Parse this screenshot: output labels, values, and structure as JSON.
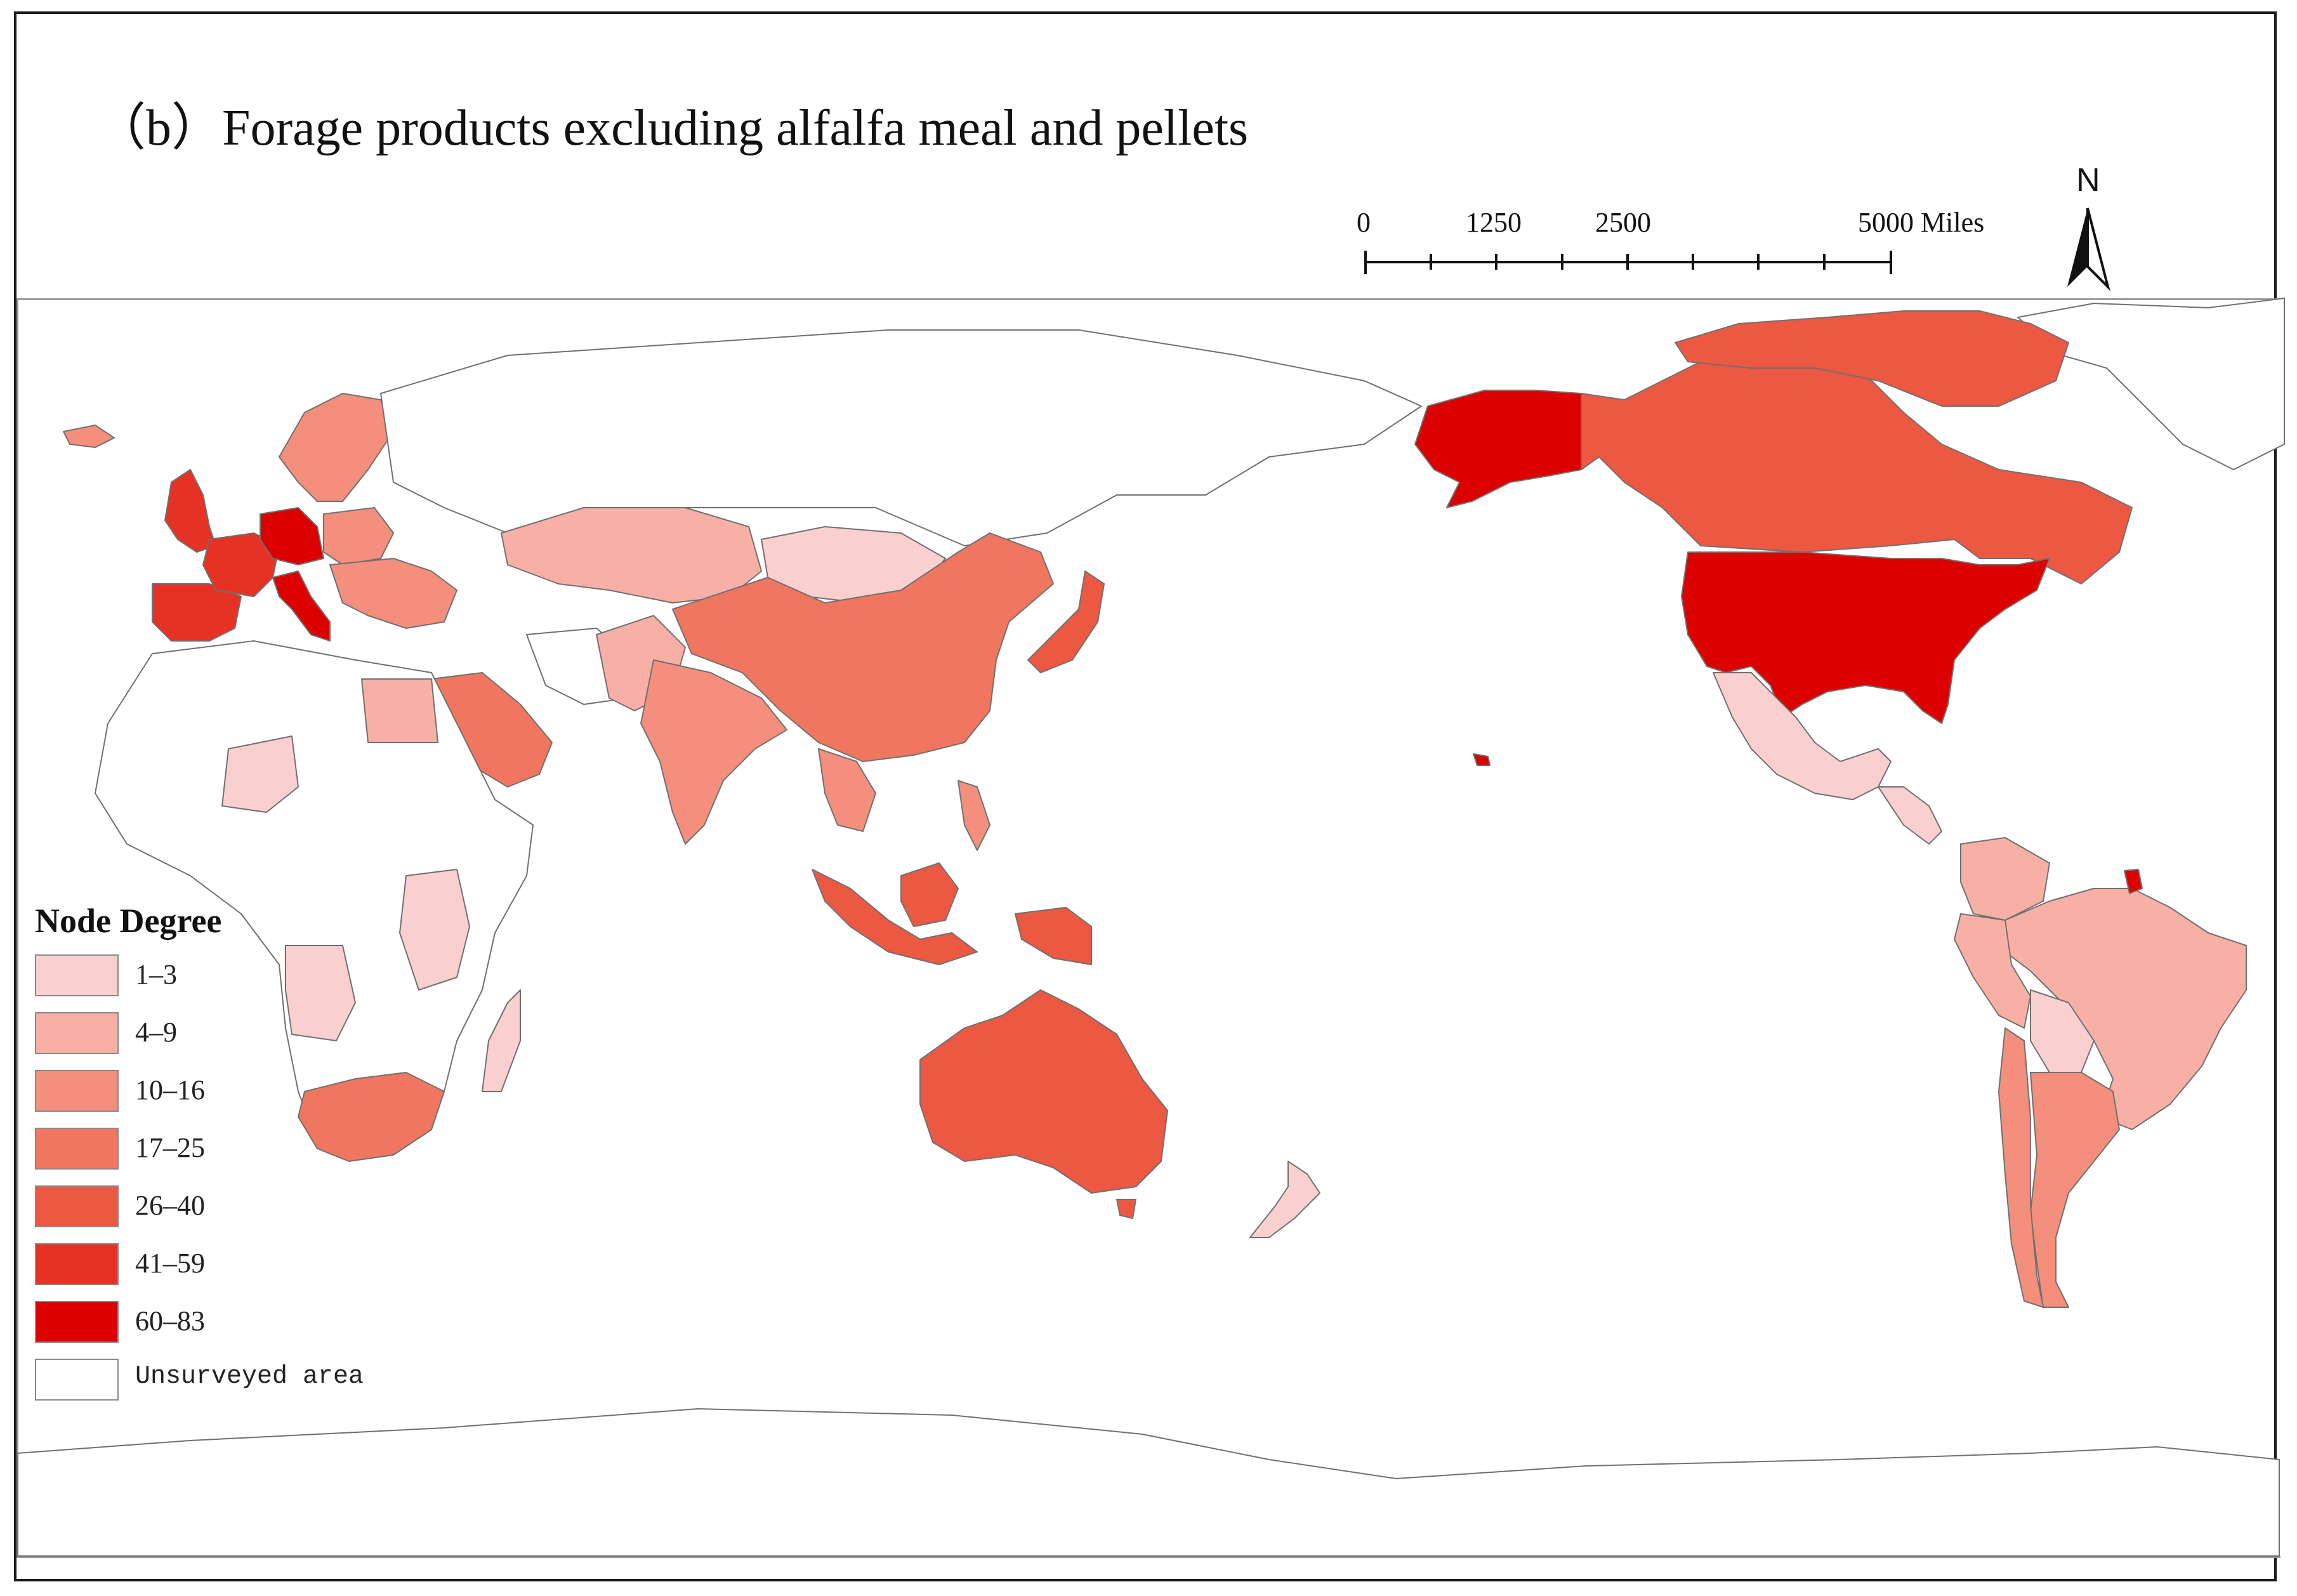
{
  "title": "（b）Forage products excluding alfalfa meal and pellets",
  "scale_bar": {
    "labels": [
      "0",
      "1250",
      "2500",
      "5000 Miles"
    ]
  },
  "north_arrow": {
    "label": "N"
  },
  "legend": {
    "title": "Node Degree",
    "items": [
      {
        "label": "1–3",
        "color": "#f9cfd0"
      },
      {
        "label": "4–9",
        "color": "#f8b0a6"
      },
      {
        "label": "10–16",
        "color": "#f48e7d"
      },
      {
        "label": "17–25",
        "color": "#f07660"
      },
      {
        "label": "26–40",
        "color": "#ec5842"
      },
      {
        "label": "41–59",
        "color": "#e63224"
      },
      {
        "label": "60–83",
        "color": "#dc0000"
      },
      {
        "label": "Unsurveyed area",
        "color": "#ffffff"
      }
    ]
  },
  "regions": [
    {
      "name": "United States",
      "class": "60–83"
    },
    {
      "name": "Alaska",
      "class": "60–83"
    },
    {
      "name": "Germany",
      "class": "60–83"
    },
    {
      "name": "Italy",
      "class": "60–83"
    },
    {
      "name": "French Guiana",
      "class": "60–83"
    },
    {
      "name": "Hawaii",
      "class": "60–83"
    },
    {
      "name": "United Kingdom",
      "class": "41–59"
    },
    {
      "name": "France",
      "class": "41–59"
    },
    {
      "name": "Spain",
      "class": "41–59"
    },
    {
      "name": "Netherlands",
      "class": "41–59"
    },
    {
      "name": "Canada",
      "class": "26–40"
    },
    {
      "name": "Australia",
      "class": "26–40"
    },
    {
      "name": "Japan",
      "class": "26–40"
    },
    {
      "name": "Indonesia",
      "class": "26–40"
    },
    {
      "name": "China",
      "class": "17–25"
    },
    {
      "name": "Saudi Arabia",
      "class": "17–25"
    },
    {
      "name": "South Africa",
      "class": "17–25"
    },
    {
      "name": "Sweden",
      "class": "10–16"
    },
    {
      "name": "Finland",
      "class": "10–16"
    },
    {
      "name": "Poland",
      "class": "10–16"
    },
    {
      "name": "India",
      "class": "10–16"
    },
    {
      "name": "Thailand",
      "class": "10–16"
    },
    {
      "name": "Argentina",
      "class": "10–16"
    },
    {
      "name": "Chile",
      "class": "10–16"
    },
    {
      "name": "Kazakhstan",
      "class": "4–9"
    },
    {
      "name": "Egypt",
      "class": "4–9"
    },
    {
      "name": "Brazil",
      "class": "4–9"
    },
    {
      "name": "Peru",
      "class": "4–9"
    },
    {
      "name": "Colombia",
      "class": "4–9"
    },
    {
      "name": "Pakistan",
      "class": "4–9"
    },
    {
      "name": "Mongolia",
      "class": "1–3"
    },
    {
      "name": "Mexico",
      "class": "1–3"
    },
    {
      "name": "New Zealand",
      "class": "1–3"
    },
    {
      "name": "Madagascar",
      "class": "1–3"
    },
    {
      "name": "Bolivia",
      "class": "1–3"
    },
    {
      "name": "Angola",
      "class": "1–3"
    },
    {
      "name": "Tanzania",
      "class": "1–3"
    },
    {
      "name": "Niger",
      "class": "1–3"
    }
  ]
}
